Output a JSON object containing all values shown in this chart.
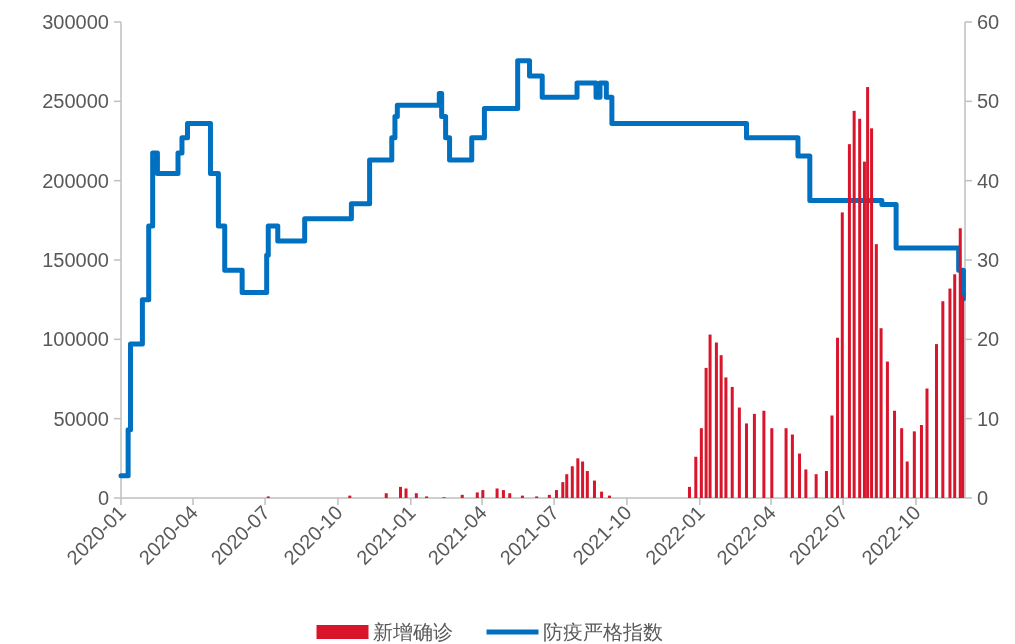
{
  "chart_data": {
    "type": "bar",
    "series": [
      {
        "name": "新增确诊",
        "color": "#d9152b",
        "x": [
          "2020-07-05",
          "2020-10-16",
          "2020-12-01",
          "2020-12-19",
          "2020-12-26",
          "2021-01-08",
          "2021-01-21",
          "2021-02-12",
          "2021-03-07",
          "2021-03-26",
          "2021-04-02",
          "2021-04-20",
          "2021-04-28",
          "2021-05-06",
          "2021-05-22",
          "2021-06-09",
          "2021-06-25",
          "2021-07-04",
          "2021-07-12",
          "2021-07-17",
          "2021-07-24",
          "2021-07-31",
          "2021-08-06",
          "2021-08-12",
          "2021-08-21",
          "2021-08-30",
          "2021-09-09",
          "2021-12-19",
          "2021-12-27",
          "2022-01-03",
          "2022-01-09",
          "2022-01-14",
          "2022-01-22",
          "2022-01-28",
          "2022-02-03",
          "2022-02-11",
          "2022-02-20",
          "2022-03-01",
          "2022-03-11",
          "2022-03-23",
          "2022-04-02",
          "2022-04-20",
          "2022-04-28",
          "2022-05-07",
          "2022-05-15",
          "2022-05-28",
          "2022-06-10",
          "2022-06-17",
          "2022-06-24",
          "2022-06-30",
          "2022-07-09",
          "2022-07-15",
          "2022-07-22",
          "2022-07-28",
          "2022-08-01",
          "2022-08-06",
          "2022-08-12",
          "2022-08-18",
          "2022-08-26",
          "2022-09-04",
          "2022-09-13",
          "2022-09-20",
          "2022-09-29",
          "2022-10-08",
          "2022-10-15",
          "2022-10-27",
          "2022-11-04",
          "2022-11-13",
          "2022-11-19",
          "2022-11-26",
          "2022-11-29"
        ],
        "values": [
          1000,
          1500,
          3000,
          7000,
          6000,
          3000,
          1000,
          500,
          2000,
          3500,
          5000,
          6000,
          5000,
          3000,
          1500,
          1000,
          2000,
          5000,
          10000,
          15000,
          20000,
          25000,
          23000,
          17000,
          11000,
          4000,
          1500,
          7000,
          26000,
          44000,
          82000,
          103000,
          98000,
          90000,
          76000,
          70000,
          57000,
          47000,
          53000,
          55000,
          44000,
          44000,
          40000,
          28000,
          18000,
          15000,
          17000,
          52000,
          101000,
          180000,
          223000,
          244000,
          239000,
          212000,
          259000,
          233000,
          160000,
          107000,
          86000,
          55000,
          44000,
          23000,
          42000,
          46000,
          69000,
          97000,
          124000,
          132000,
          141000,
          170000,
          128000
        ]
      },
      {
        "name": "防疫严格指数",
        "type": "step",
        "axis": "y2",
        "color": "#0070c0",
        "x": [
          "2020-01-01",
          "2020-01-10",
          "2020-01-13",
          "2020-01-28",
          "2020-02-05",
          "2020-02-10",
          "2020-02-16",
          "2020-03-13",
          "2020-03-18",
          "2020-03-25",
          "2020-04-23",
          "2020-05-03",
          "2020-05-11",
          "2020-06-02",
          "2020-07-03",
          "2020-07-05",
          "2020-07-17",
          "2020-08-20",
          "2020-10-18",
          "2020-11-10",
          "2020-12-08",
          "2020-12-12",
          "2020-12-15",
          "2021-02-06",
          "2021-02-09",
          "2021-02-14",
          "2021-02-19",
          "2021-03-19",
          "2021-04-04",
          "2021-05-16",
          "2021-05-31",
          "2021-06-16",
          "2021-07-30",
          "2021-08-23",
          "2021-08-28",
          "2021-09-05",
          "2021-09-12",
          "2022-03-01",
          "2022-05-05",
          "2022-05-20",
          "2022-08-19",
          "2022-09-06",
          "2022-11-24",
          "2022-11-30"
        ],
        "values": [
          2.8,
          8.6,
          19.4,
          25,
          34.3,
          43.5,
          40.9,
          43.5,
          45.4,
          47.2,
          40.9,
          34.3,
          28.7,
          25.9,
          30.6,
          34.3,
          32.4,
          35.2,
          37.1,
          42.6,
          45.4,
          48.1,
          49.5,
          51,
          48.1,
          45.4,
          42.6,
          45.4,
          49.1,
          55.1,
          53.2,
          50.5,
          52.3,
          50.5,
          52.3,
          50.5,
          47.2,
          45.4,
          43.1,
          37.5,
          37,
          31.5,
          28.7,
          25.1
        ]
      }
    ],
    "xlim": [
      "2020-01-01",
      "2022-12-02"
    ],
    "xticks": [
      "2020-01",
      "2020-04",
      "2020-07",
      "2020-10",
      "2021-01",
      "2021-04",
      "2021-07",
      "2021-10",
      "2022-01",
      "2022-04",
      "2022-07",
      "2022-10"
    ],
    "ylim": [
      0,
      300000
    ],
    "yticks": [
      0,
      50000,
      100000,
      150000,
      200000,
      250000,
      300000
    ],
    "y2lim": [
      0,
      60
    ],
    "y2ticks": [
      0,
      10,
      20,
      30,
      40,
      50,
      60
    ],
    "legend": "bottom"
  }
}
